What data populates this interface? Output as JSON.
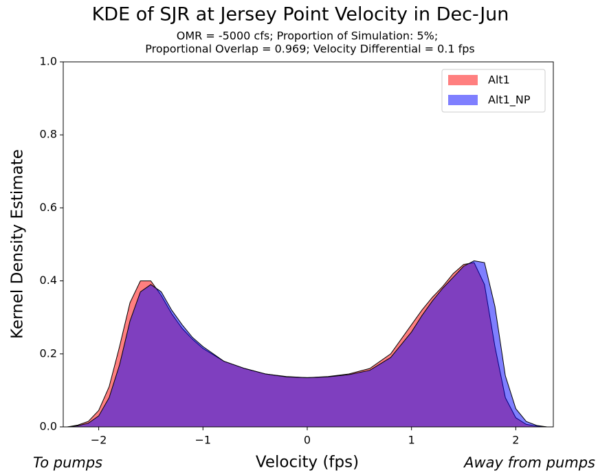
{
  "chart_data": {
    "type": "area",
    "title": "KDE of SJR at Jersey Point Velocity in Dec-Jun",
    "subtitle": [
      "OMR = -5000 cfs; Proportion of Simulation: 5%;",
      "Proportional Overlap = 0.969; Velocity Differential = 0.1 fps"
    ],
    "x_label": "Velocity (fps)",
    "y_label": "Kernel Density Estimate",
    "annotations": [
      "To pumps",
      "Away from pumps"
    ],
    "x": [
      -2.3,
      -2.2,
      -2.1,
      -2.0,
      -1.9,
      -1.8,
      -1.7,
      -1.6,
      -1.5,
      -1.4,
      -1.3,
      -1.2,
      -1.1,
      -1.0,
      -0.8,
      -0.6,
      -0.4,
      -0.2,
      0,
      0.2,
      0.4,
      0.6,
      0.8,
      1.0,
      1.1,
      1.2,
      1.3,
      1.4,
      1.5,
      1.6,
      1.7,
      1.8,
      1.9,
      2.0,
      2.1,
      2.2,
      2.3
    ],
    "series": [
      {
        "name": "Alt1",
        "color": "#ff0000",
        "values": [
          0,
          0.005,
          0.015,
          0.045,
          0.11,
          0.22,
          0.34,
          0.4,
          0.4,
          0.36,
          0.31,
          0.27,
          0.24,
          0.215,
          0.18,
          0.16,
          0.145,
          0.138,
          0.135,
          0.138,
          0.145,
          0.16,
          0.2,
          0.28,
          0.32,
          0.355,
          0.385,
          0.42,
          0.445,
          0.45,
          0.39,
          0.22,
          0.08,
          0.025,
          0.007,
          0.002,
          0
        ]
      },
      {
        "name": "Alt1_NP",
        "color": "#0000ff",
        "values": [
          0,
          0.003,
          0.01,
          0.03,
          0.08,
          0.17,
          0.29,
          0.37,
          0.39,
          0.37,
          0.32,
          0.28,
          0.245,
          0.22,
          0.18,
          0.16,
          0.145,
          0.137,
          0.135,
          0.137,
          0.143,
          0.155,
          0.19,
          0.26,
          0.305,
          0.345,
          0.38,
          0.41,
          0.44,
          0.455,
          0.45,
          0.33,
          0.14,
          0.05,
          0.015,
          0.004,
          0
        ]
      }
    ],
    "xlim": [
      -2.34,
      2.36
    ],
    "ylim": [
      0,
      1
    ],
    "xticks": [
      {
        "value": -2,
        "label": "−2"
      },
      {
        "value": -1,
        "label": "−1"
      },
      0,
      1,
      2
    ],
    "yticks": [
      {
        "value": 0,
        "label": "0.0"
      },
      {
        "value": 0.2,
        "label": "0.2"
      },
      {
        "value": 0.4,
        "label": "0.4"
      },
      {
        "value": 0.6,
        "label": "0.6"
      },
      {
        "value": 0.8,
        "label": "0.8"
      },
      {
        "value": 1,
        "label": "1.0"
      }
    ],
    "legend": "upper right",
    "fill_opacity": 0.5
  }
}
